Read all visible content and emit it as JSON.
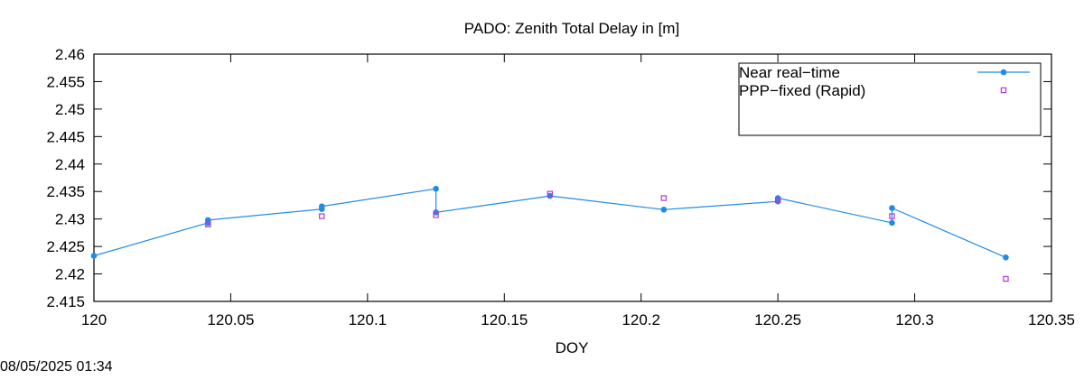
{
  "chart_data": {
    "type": "line",
    "title": "PADO: Zenith Total Delay in [m]",
    "xlabel": "DOY",
    "ylabel": "",
    "xlim": [
      120,
      120.35
    ],
    "ylim": [
      2.415,
      2.46
    ],
    "xticks": [
      "120",
      "120.05",
      "120.1",
      "120.15",
      "120.2",
      "120.25",
      "120.3",
      "120.35"
    ],
    "yticks": [
      "2.415",
      "2.42",
      "2.425",
      "2.43",
      "2.435",
      "2.44",
      "2.445",
      "2.45",
      "2.455",
      "2.46"
    ],
    "grid": false,
    "legend_position": "top-right",
    "series": [
      {
        "name": "Near real−time",
        "style": "line-points",
        "color": "#1f8ae8",
        "x": [
          120.0,
          120.0417,
          120.0417,
          120.0833,
          120.0833,
          120.125,
          120.125,
          120.1667,
          120.2083,
          120.25,
          120.25,
          120.2917,
          120.2917,
          120.3333
        ],
        "y": [
          2.4233,
          2.4293,
          2.4298,
          2.4318,
          2.4323,
          2.4355,
          2.4312,
          2.4342,
          2.4317,
          2.4332,
          2.4338,
          2.4293,
          2.432,
          2.423
        ]
      },
      {
        "name": "PPP−fixed (Rapid)",
        "style": "points",
        "color": "#b23ad6",
        "x": [
          120.0417,
          120.0833,
          120.125,
          120.1667,
          120.2083,
          120.25,
          120.2917,
          120.3333
        ],
        "y": [
          2.429,
          2.4305,
          2.4307,
          2.4346,
          2.4338,
          2.4334,
          2.4305,
          2.4191
        ]
      }
    ]
  },
  "footer": {
    "timestamp": "08/05/2025 01:34"
  }
}
